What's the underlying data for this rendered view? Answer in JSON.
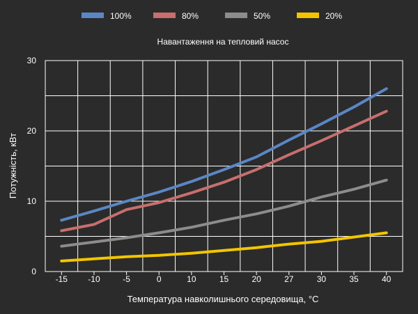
{
  "chart_data": {
    "type": "line",
    "title": "Навантаження на тепловий насос",
    "xlabel": "Температура навколишнього середовища, °C",
    "ylabel": "Потужність, кВт",
    "ylim": [
      0,
      30
    ],
    "yticks": [
      0,
      10,
      20,
      30
    ],
    "categories": [
      "-15",
      "-10",
      "-5",
      "0",
      "10",
      "15",
      "20",
      "27",
      "30",
      "35",
      "40"
    ],
    "legend_position": "top",
    "grid": true,
    "series": [
      {
        "name": "100%",
        "color": "#5b86c5",
        "values": [
          7.3,
          8.6,
          10.0,
          11.3,
          12.8,
          14.5,
          16.3,
          18.7,
          21.0,
          23.4,
          26.0
        ]
      },
      {
        "name": "80%",
        "color": "#c86e6e",
        "values": [
          5.8,
          6.7,
          8.8,
          9.8,
          11.2,
          12.7,
          14.5,
          16.6,
          18.6,
          20.7,
          22.8
        ]
      },
      {
        "name": "50%",
        "color": "#8c8c8c",
        "values": [
          3.6,
          4.2,
          4.8,
          5.5,
          6.3,
          7.3,
          8.2,
          9.3,
          10.6,
          11.7,
          13.0
        ]
      },
      {
        "name": "20%",
        "color": "#f2c500",
        "values": [
          1.5,
          1.8,
          2.1,
          2.3,
          2.6,
          3.0,
          3.4,
          3.9,
          4.3,
          4.9,
          5.5
        ]
      }
    ]
  }
}
